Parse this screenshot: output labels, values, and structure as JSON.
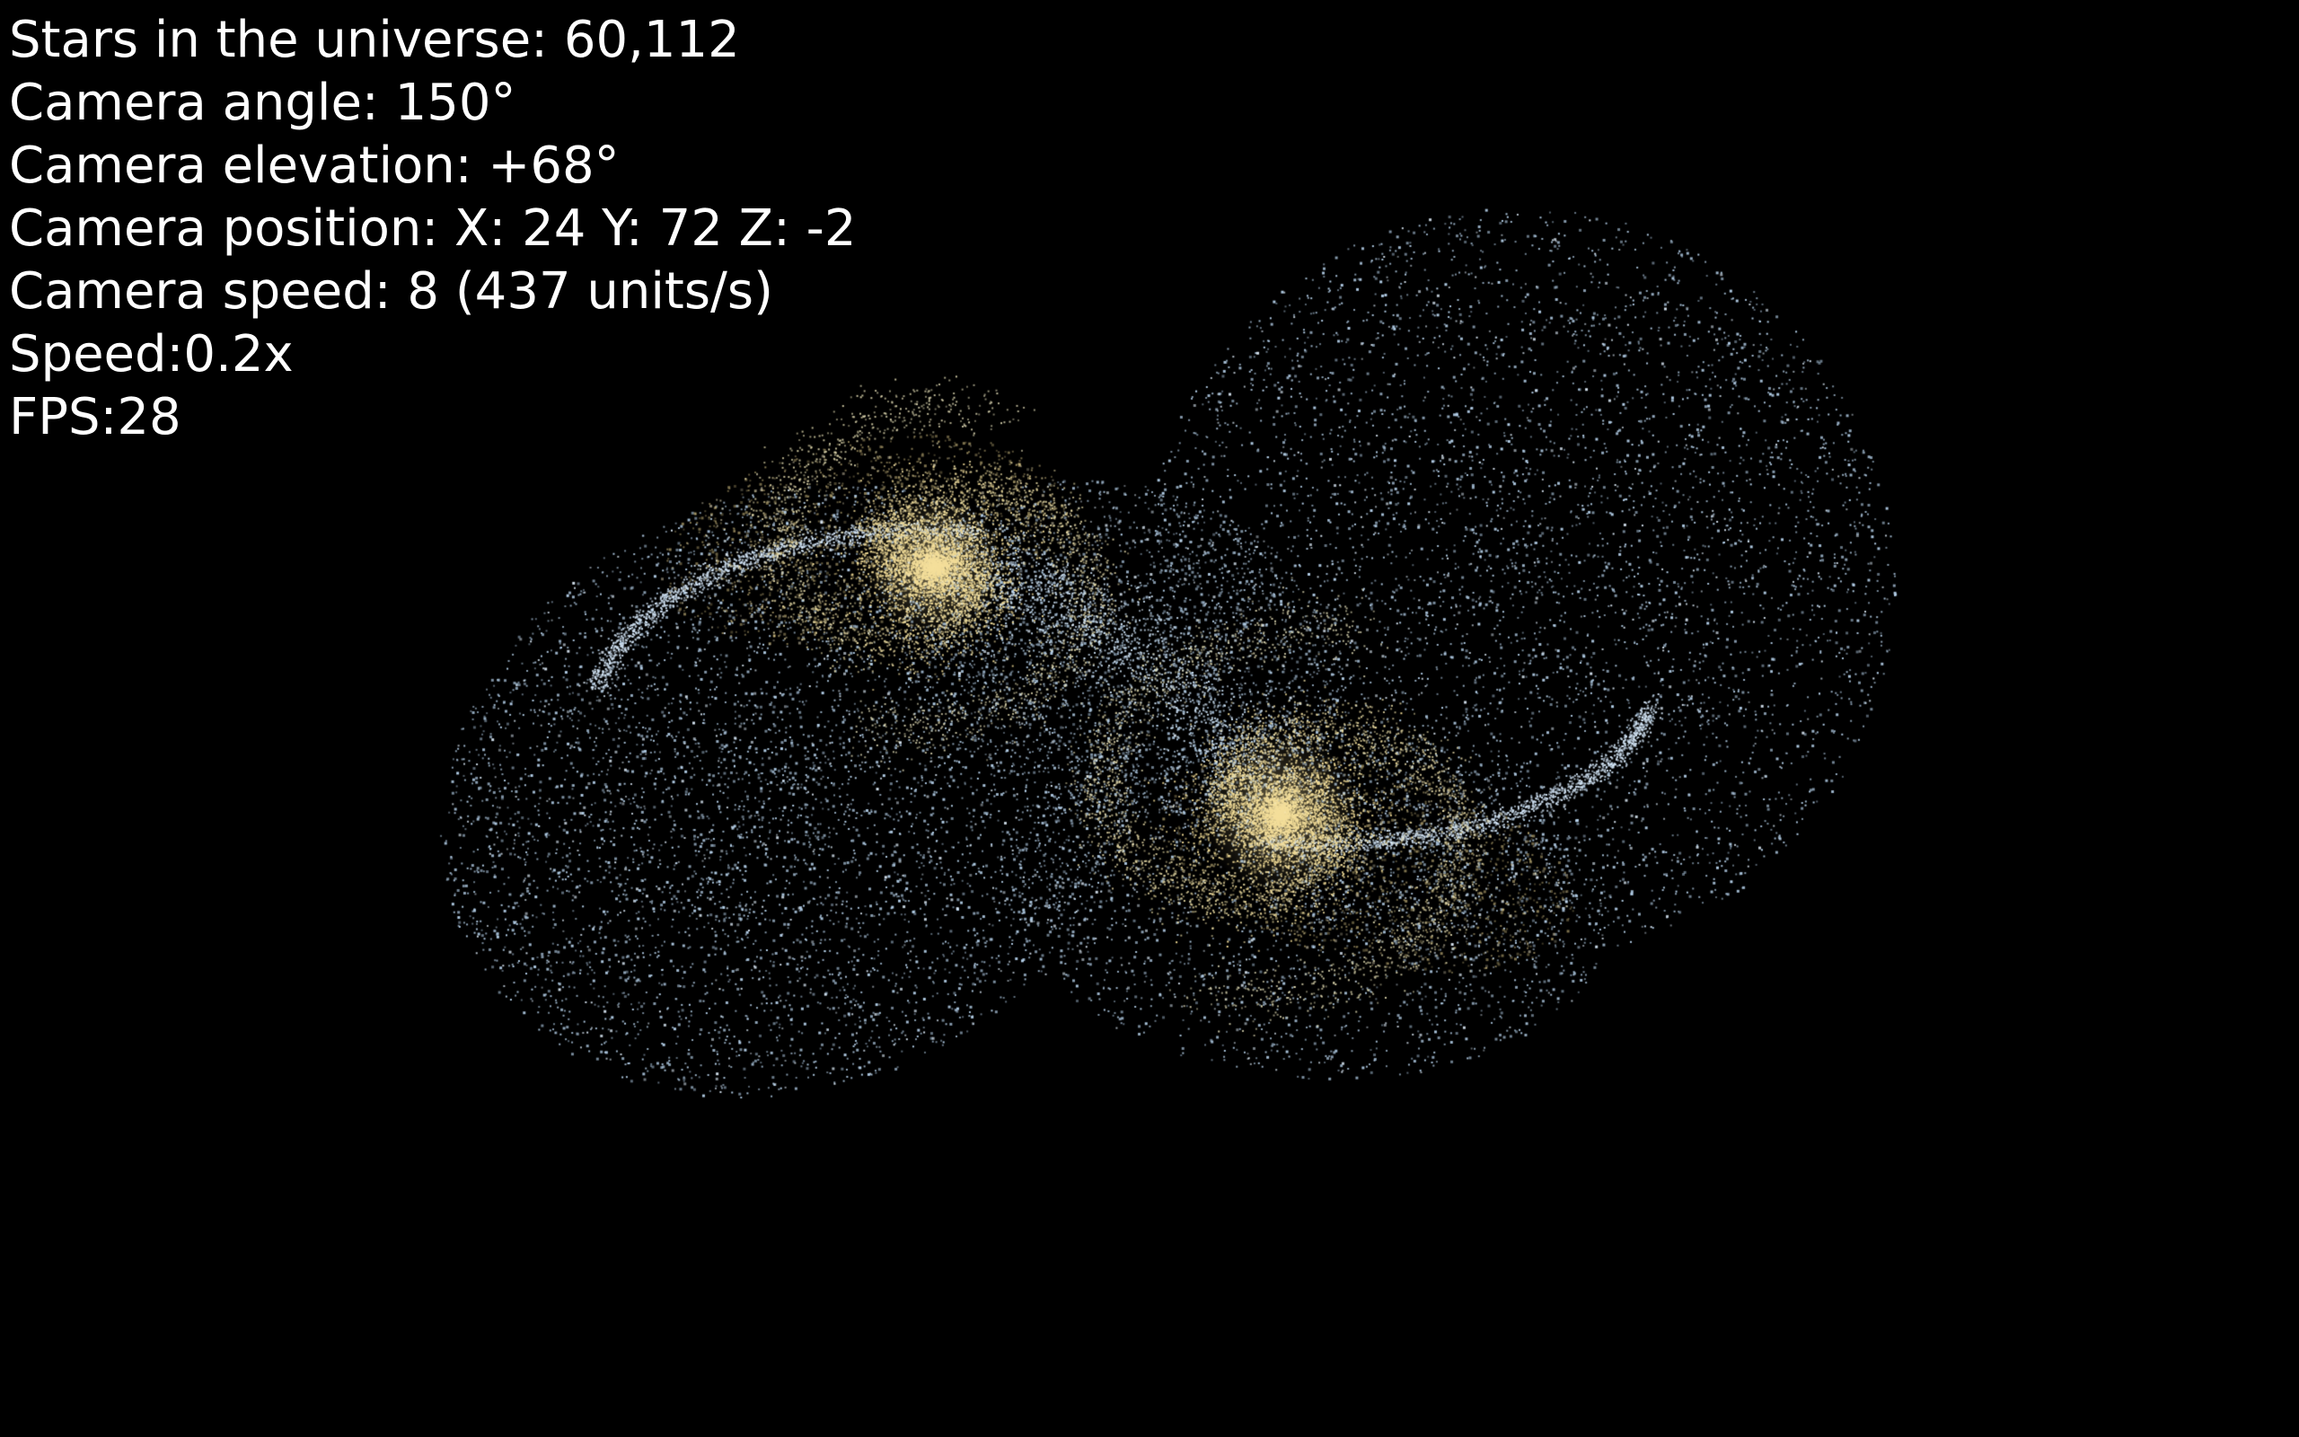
{
  "hud": {
    "stars": "Stars in the universe: 60,112",
    "camera_angle": "Camera angle: 150°",
    "camera_elevation": "Camera elevation: +68°",
    "camera_position": "Camera position: X: 24 Y: 72 Z: -2",
    "camera_speed": "Camera speed: 8 (437 units/s)",
    "sim_speed": "Speed:0.2x",
    "fps": "FPS:28"
  },
  "colors": {
    "background": "#000000",
    "hud_text": "#ffffff",
    "blue_star": "#b8d4ee",
    "yellow_star": "#f2dc96",
    "core_glow": "#f7e2a0"
  }
}
